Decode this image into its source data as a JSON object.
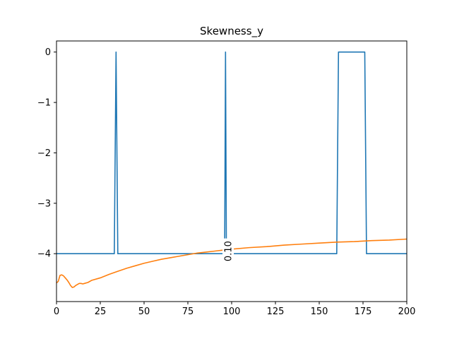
{
  "chart_data": {
    "type": "line",
    "title": "Skewness_y",
    "xlabel": "",
    "ylabel": "",
    "xlim": [
      0,
      200
    ],
    "ylim": [
      -4.95,
      0.22
    ],
    "x_ticks": [
      0,
      25,
      50,
      75,
      100,
      125,
      150,
      175,
      200
    ],
    "x_tick_labels": [
      "0",
      "25",
      "50",
      "75",
      "100",
      "125",
      "150",
      "175",
      "200"
    ],
    "y_ticks": [
      0,
      -1,
      -2,
      -3,
      -4
    ],
    "y_tick_labels": [
      "0",
      "−1",
      "−2",
      "−3",
      "−4"
    ],
    "grid": false,
    "legend": "none",
    "series": [
      {
        "color": "#1f77b4",
        "points": [
          [
            0,
            -4
          ],
          [
            33,
            -4
          ],
          [
            34,
            0
          ],
          [
            35,
            -4
          ],
          [
            96,
            -4
          ],
          [
            96.5,
            0
          ],
          [
            97,
            -4
          ],
          [
            160,
            -4
          ],
          [
            161,
            0
          ],
          [
            176,
            0
          ],
          [
            177,
            -4
          ],
          [
            200,
            -4
          ]
        ]
      },
      {
        "color": "#ff7f0e",
        "points": [
          [
            0,
            -4.58
          ],
          [
            1,
            -4.55
          ],
          [
            2,
            -4.43
          ],
          [
            3,
            -4.42
          ],
          [
            4,
            -4.44
          ],
          [
            5,
            -4.48
          ],
          [
            6,
            -4.52
          ],
          [
            7,
            -4.57
          ],
          [
            8,
            -4.63
          ],
          [
            9,
            -4.67
          ],
          [
            10,
            -4.66
          ],
          [
            11,
            -4.63
          ],
          [
            12,
            -4.61
          ],
          [
            13,
            -4.59
          ],
          [
            14,
            -4.59
          ],
          [
            15,
            -4.6
          ],
          [
            16,
            -4.59
          ],
          [
            18,
            -4.57
          ],
          [
            20,
            -4.53
          ],
          [
            25,
            -4.48
          ],
          [
            30,
            -4.41
          ],
          [
            35,
            -4.35
          ],
          [
            40,
            -4.29
          ],
          [
            45,
            -4.24
          ],
          [
            50,
            -4.19
          ],
          [
            55,
            -4.15
          ],
          [
            60,
            -4.11
          ],
          [
            65,
            -4.08
          ],
          [
            70,
            -4.05
          ],
          [
            75,
            -4.02
          ],
          [
            80,
            -3.99
          ],
          [
            85,
            -3.97
          ],
          [
            90,
            -3.95
          ],
          [
            95,
            -3.93
          ],
          [
            100,
            -3.91
          ],
          [
            110,
            -3.88
          ],
          [
            120,
            -3.86
          ],
          [
            130,
            -3.83
          ],
          [
            140,
            -3.81
          ],
          [
            150,
            -3.79
          ],
          [
            160,
            -3.77
          ],
          [
            170,
            -3.76
          ],
          [
            180,
            -3.74
          ],
          [
            190,
            -3.73
          ],
          [
            200,
            -3.71
          ]
        ]
      }
    ],
    "annotation": {
      "text": "0.10",
      "x": 98,
      "y": -3.95
    }
  }
}
